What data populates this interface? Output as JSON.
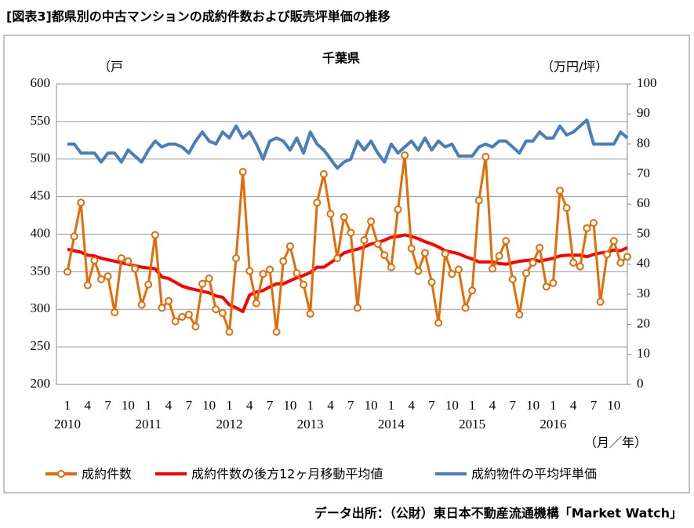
{
  "title": "[図表3]都県別の中古マンションの成約件数および販売坪単価の推移",
  "source": "データ出所：（公財）東日本不動産流通機構「Market Watch」",
  "chart_data": {
    "type": "line",
    "title": "千葉県",
    "y_label": "（戸",
    "y2_label": "（万円/坪）",
    "x_label": "（月／年）",
    "categories": [
      "1",
      null,
      null,
      "4",
      null,
      null,
      "7",
      null,
      null,
      "10",
      null,
      null,
      "1",
      null,
      null,
      "4",
      null,
      null,
      "7",
      null,
      null,
      "10",
      null,
      null,
      "1",
      null,
      null,
      "4",
      null,
      null,
      "7",
      null,
      null,
      "10",
      null,
      null,
      "1",
      null,
      null,
      "4",
      null,
      null,
      "7",
      null,
      null,
      "10",
      null,
      null,
      "1",
      null,
      null,
      "4",
      null,
      null,
      "7",
      null,
      null,
      "10",
      null,
      null,
      "1",
      null,
      null,
      "4",
      null,
      null,
      "7",
      null,
      null,
      "10",
      null,
      null,
      "1",
      null,
      null,
      "4",
      null,
      null,
      "7",
      null,
      null,
      "10",
      null,
      null
    ],
    "x_years": [
      "2010",
      "2011",
      "2012",
      "2013",
      "2014",
      "2015",
      "2016"
    ],
    "ylim": [
      200,
      600
    ],
    "yticks": [
      200,
      250,
      300,
      350,
      400,
      450,
      500,
      550,
      600
    ],
    "y2lim": [
      0,
      100
    ],
    "y2ticks": [
      0,
      10,
      20,
      30,
      40,
      50,
      60,
      70,
      80,
      90,
      100
    ],
    "grid": true,
    "legend": "bottom",
    "series": [
      {
        "name": "成約件数",
        "color": "#e36c09",
        "markers": true,
        "values": [
          350,
          397,
          442,
          332,
          365,
          340,
          344,
          296,
          368,
          364,
          354,
          306,
          333,
          399,
          302,
          311,
          284,
          290,
          293,
          277,
          334,
          341,
          300,
          295,
          270,
          368,
          483,
          351,
          308,
          347,
          353,
          270,
          364,
          384,
          348,
          333,
          294,
          442,
          480,
          427,
          368,
          423,
          402,
          302,
          392,
          417,
          387,
          372,
          356,
          433,
          505,
          381,
          351,
          375,
          336,
          282,
          374,
          347,
          353,
          302,
          325,
          445,
          503,
          354,
          371,
          391,
          340,
          293,
          348,
          362,
          382,
          330,
          335,
          458,
          435,
          362,
          357,
          408,
          415,
          310,
          373,
          391,
          362,
          370
        ]
      },
      {
        "name": "成約件数の後方12ヶ月移動平均値",
        "color": "#ff0000",
        "markers": false,
        "values": [
          380,
          378,
          376,
          372,
          371,
          368,
          366,
          364,
          362,
          360,
          358,
          356,
          355,
          354,
          343,
          341,
          336,
          331,
          328,
          326,
          324,
          322,
          318,
          316,
          306,
          302,
          297,
          319,
          323,
          325,
          330,
          334,
          334,
          338,
          342,
          345,
          349,
          356,
          356,
          362,
          368,
          375,
          378,
          380,
          383,
          387,
          389,
          392,
          396,
          397,
          399,
          397,
          394,
          390,
          387,
          383,
          378,
          376,
          374,
          370,
          367,
          363,
          363,
          363,
          361,
          360,
          362,
          364,
          365,
          366,
          364,
          366,
          368,
          371,
          372,
          372,
          372,
          370,
          373,
          375,
          376,
          379,
          378,
          382
        ]
      },
      {
        "name": "成約物件の平均坪単価",
        "color": "#4a7ebb",
        "markers": false,
        "axis": "y2",
        "values": [
          80,
          80,
          77,
          77,
          77,
          74,
          77,
          77,
          74,
          78,
          76,
          74,
          78,
          81,
          79,
          80,
          80,
          79,
          77,
          81,
          84,
          81,
          80,
          84,
          82,
          86,
          82,
          84,
          80,
          75,
          81,
          82,
          81,
          78,
          82,
          77,
          84,
          80,
          78,
          75,
          72,
          74,
          75,
          81,
          78,
          81,
          77,
          74,
          80,
          77,
          79,
          81,
          78,
          82,
          78,
          81,
          79,
          80,
          76,
          76,
          76,
          79,
          80,
          79,
          81,
          81,
          79,
          77,
          81,
          81,
          84,
          82,
          82,
          86,
          83,
          84,
          86,
          88,
          80,
          80,
          80,
          80,
          84,
          82
        ]
      }
    ]
  }
}
